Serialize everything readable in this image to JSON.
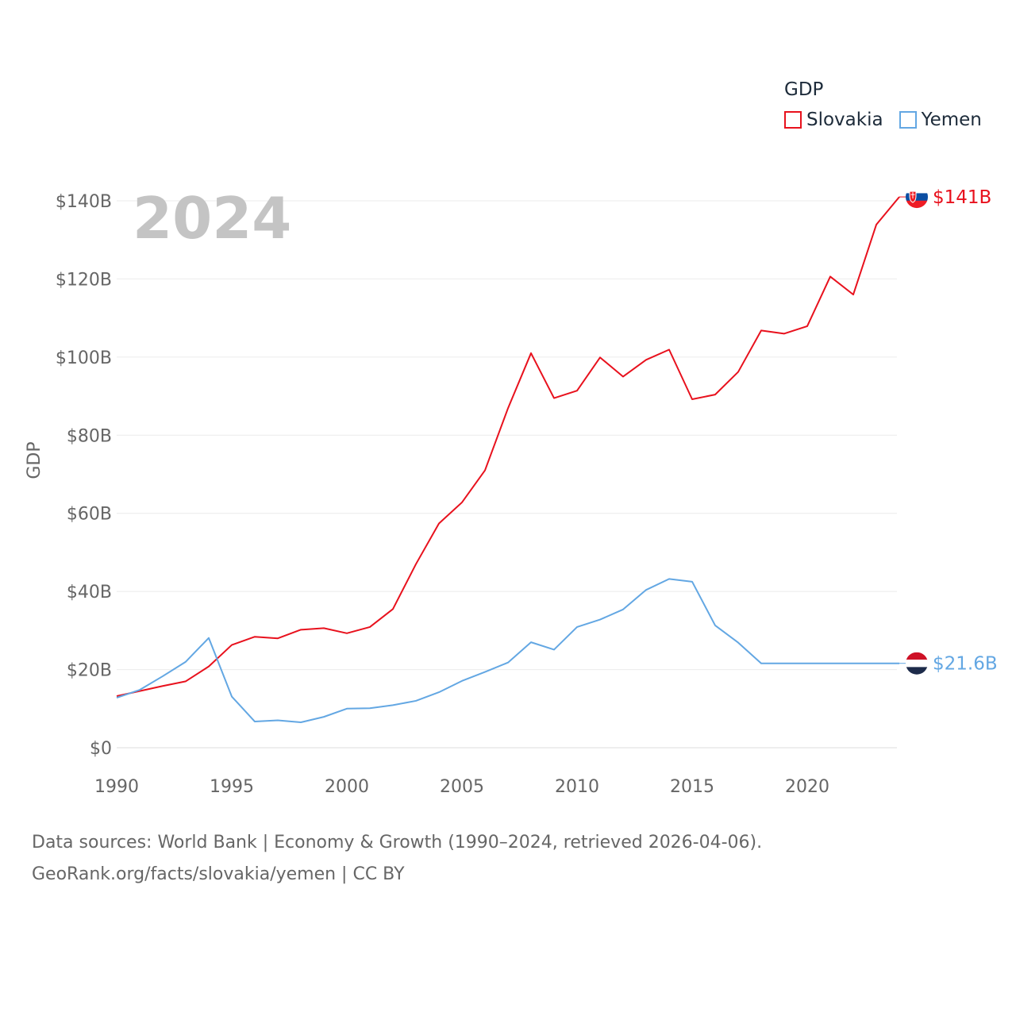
{
  "legend": {
    "title": "GDP",
    "items": [
      {
        "label": "Slovakia",
        "color": "#e8111d"
      },
      {
        "label": "Yemen",
        "color": "#63a7e3"
      }
    ]
  },
  "year_label": "2024",
  "sources": {
    "line1": "Data sources: World Bank | Economy & Growth (1990–2024, retrieved 2026-04-06).",
    "line2": "GeoRank.org/facts/slovakia/yemen | CC BY"
  },
  "chart_data": {
    "type": "line",
    "title": "GDP",
    "ylabel": "GDP",
    "xlabel": "",
    "xlim": [
      1990,
      2024
    ],
    "ylim": [
      0,
      140
    ],
    "grid": true,
    "x_ticks": [
      {
        "value": 1990,
        "label": "1990"
      },
      {
        "value": 1995,
        "label": "1995"
      },
      {
        "value": 2000,
        "label": "2000"
      },
      {
        "value": 2005,
        "label": "2005"
      },
      {
        "value": 2010,
        "label": "2010"
      },
      {
        "value": 2015,
        "label": "2015"
      },
      {
        "value": 2020,
        "label": "2020"
      }
    ],
    "y_ticks": [
      {
        "value": 0,
        "label": "$0"
      },
      {
        "value": 20,
        "label": "$20B"
      },
      {
        "value": 40,
        "label": "$40B"
      },
      {
        "value": 60,
        "label": "$60B"
      },
      {
        "value": 80,
        "label": "$80B"
      },
      {
        "value": 100,
        "label": "$100B"
      },
      {
        "value": 120,
        "label": "$120B"
      },
      {
        "value": 140,
        "label": "$140B"
      }
    ],
    "x": [
      1990,
      1991,
      1992,
      1993,
      1994,
      1995,
      1996,
      1997,
      1998,
      1999,
      2000,
      2001,
      2002,
      2003,
      2004,
      2005,
      2006,
      2007,
      2008,
      2009,
      2010,
      2011,
      2012,
      2013,
      2014,
      2015,
      2016,
      2017,
      2018,
      2019,
      2020,
      2021,
      2022,
      2023,
      2024
    ],
    "series": [
      {
        "name": "Slovakia",
        "color": "#e8111d",
        "end_label": "$141B",
        "values": [
          13.2,
          14.5,
          15.8,
          17.0,
          20.8,
          26.3,
          28.4,
          28.0,
          30.2,
          30.6,
          29.3,
          30.9,
          35.5,
          47.0,
          57.4,
          62.8,
          71.0,
          86.9,
          101.0,
          89.5,
          91.4,
          99.9,
          95.0,
          99.3,
          101.9,
          89.2,
          90.4,
          96.2,
          106.8,
          106.0,
          107.9,
          120.6,
          116.0,
          133.9,
          141.0
        ]
      },
      {
        "name": "Yemen",
        "color": "#63a7e3",
        "end_label": "$21.6B",
        "values": [
          12.8,
          14.8,
          18.3,
          22.0,
          28.1,
          13.1,
          6.7,
          7.0,
          6.5,
          7.9,
          10.0,
          10.1,
          10.9,
          12.0,
          14.2,
          17.1,
          19.4,
          21.8,
          27.0,
          25.1,
          30.9,
          32.8,
          35.4,
          40.4,
          43.2,
          42.5,
          31.3,
          26.9,
          21.6,
          21.6,
          21.6,
          21.6,
          21.6,
          21.6,
          21.6
        ]
      }
    ]
  }
}
